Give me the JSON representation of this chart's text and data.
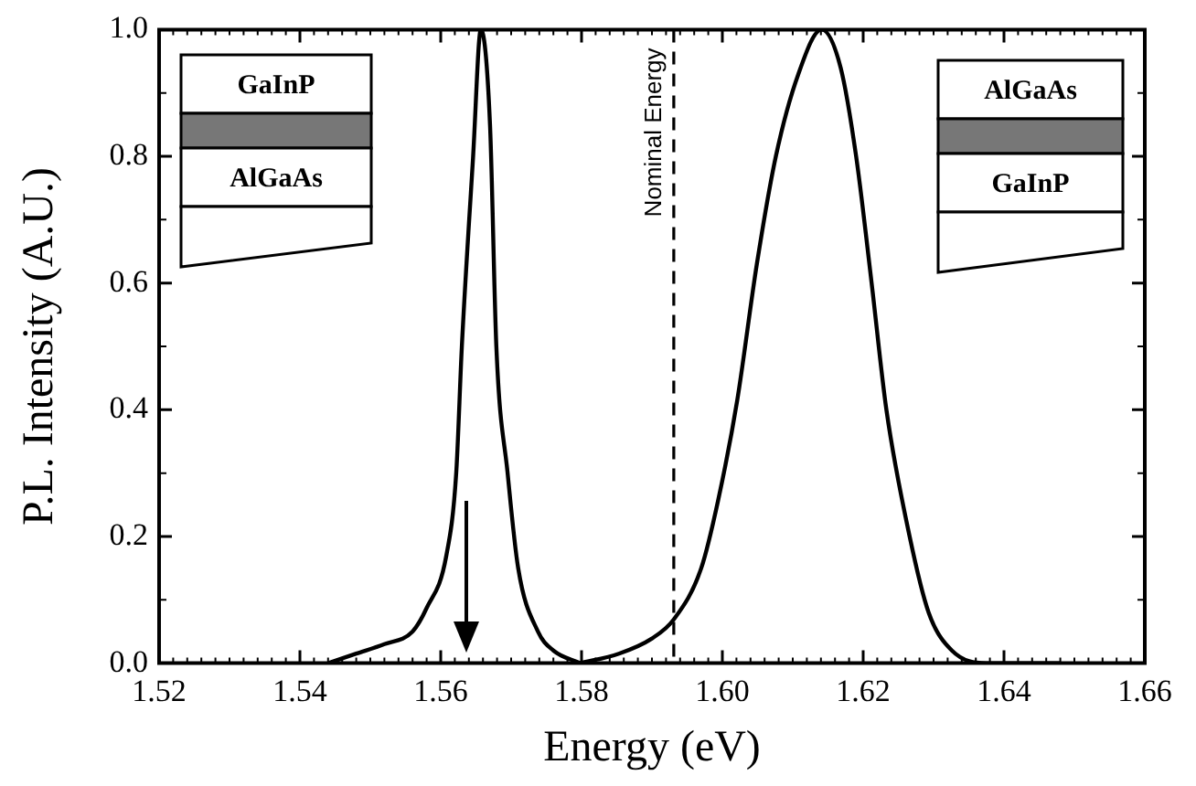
{
  "chart_data": {
    "type": "line",
    "xlabel": "Energy (eV)",
    "ylabel": "P.L. Intensity (A.U.)",
    "xlim": [
      1.52,
      1.66
    ],
    "xticks": [
      1.52,
      1.54,
      1.56,
      1.58,
      {
        "value": 1.6,
        "label": "1.60"
      },
      1.62,
      1.64,
      1.66
    ],
    "ylim": [
      0,
      1
    ],
    "yticks": [
      {
        "value": 0,
        "label": "0.0"
      },
      0.2,
      0.4,
      0.6,
      0.8,
      {
        "value": 1,
        "label": "1.0"
      }
    ],
    "grid": false,
    "legend": false,
    "marker": "none",
    "line_style": "solid",
    "series": [
      {
        "color": "#000000",
        "x": [
          1.544,
          1.548,
          1.552,
          1.556,
          1.558,
          1.5608,
          1.5622,
          1.563,
          1.5646,
          1.5657,
          1.567,
          1.5679,
          1.5695,
          1.571,
          1.5738,
          1.576,
          1.5798
        ],
        "values": [
          0.0,
          0.015,
          0.03,
          0.05,
          0.087,
          0.17,
          0.3,
          0.5,
          0.8,
          1.0,
          0.85,
          0.5,
          0.3,
          0.15,
          0.05,
          0.02,
          0.0
        ]
      },
      {
        "color": "#000000",
        "x": [
          1.5798,
          1.5853,
          1.59,
          1.5931,
          1.597,
          1.5994,
          1.6021,
          1.6049,
          1.6076,
          1.6108,
          1.6141,
          1.6168,
          1.619,
          1.6212,
          1.6233,
          1.6266,
          1.6293,
          1.6326,
          1.6375,
          1.648
        ],
        "values": [
          0.0,
          0.015,
          0.039,
          0.069,
          0.15,
          0.257,
          0.414,
          0.63,
          0.8,
          0.93,
          1.0,
          0.94,
          0.8,
          0.6,
          0.4,
          0.2,
          0.08,
          0.02,
          0.0,
          0.0
        ]
      }
    ],
    "ref_lines": [
      {
        "axis": "x",
        "value": 1.5931,
        "label": "Nominal Energy",
        "color": "#000000",
        "line_style": "dashed"
      }
    ],
    "annotations": [
      "GaInP",
      "AlGaAs",
      "AlGaAs",
      "GaInP"
    ]
  }
}
